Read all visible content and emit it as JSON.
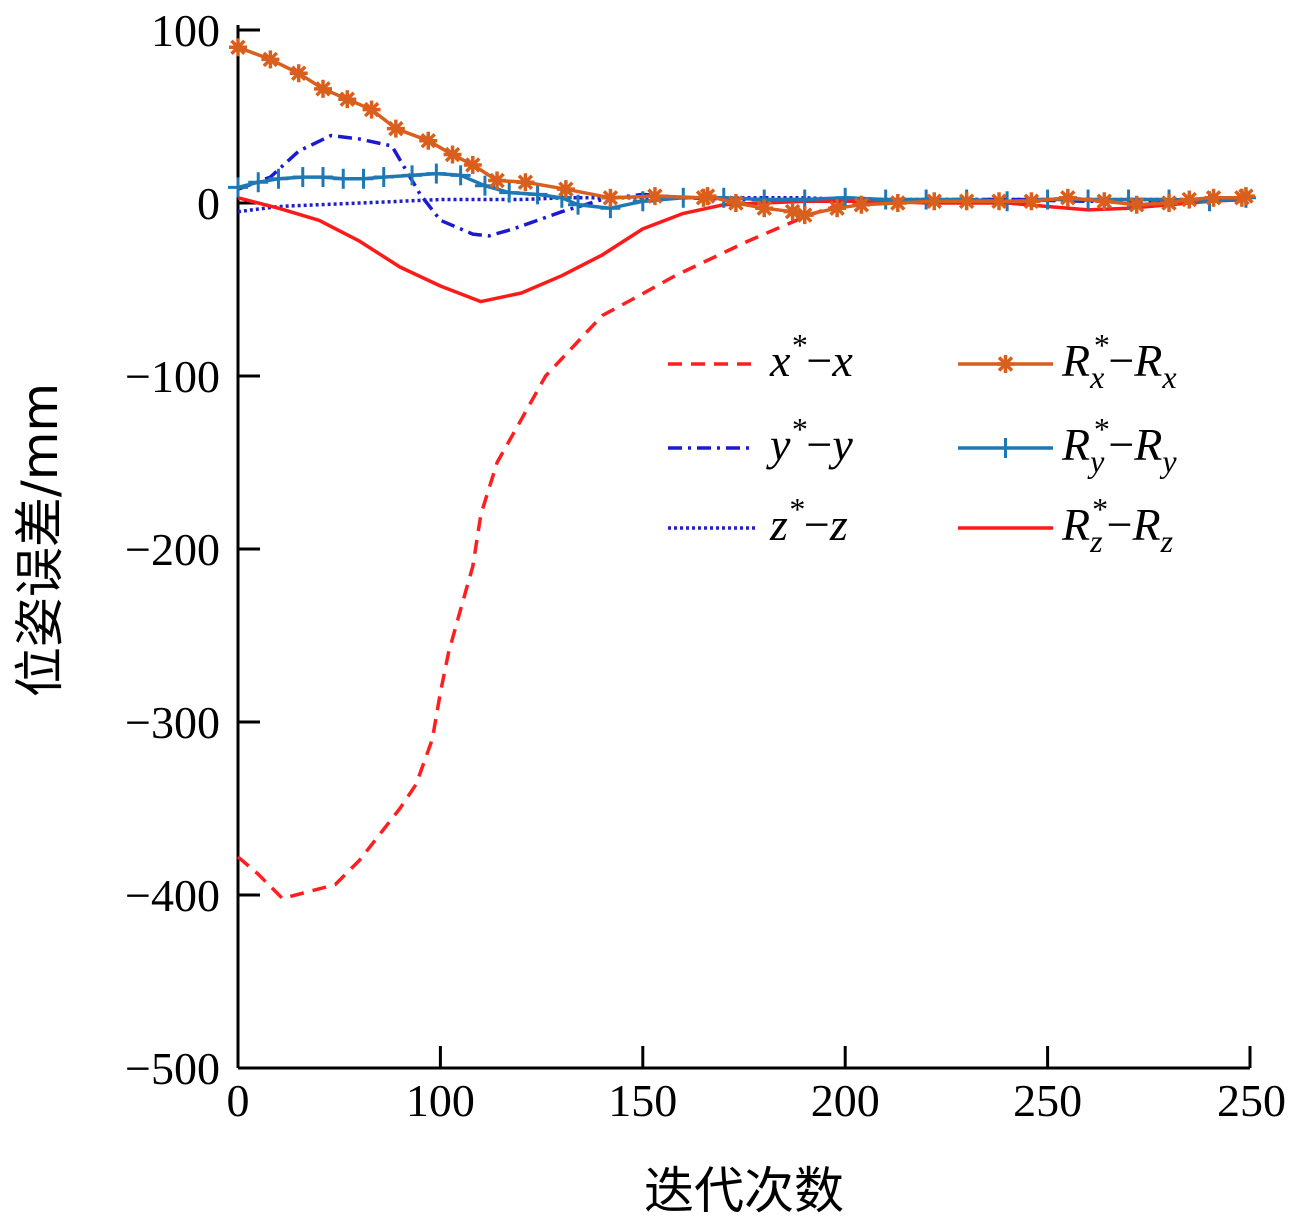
{
  "chart_data": {
    "type": "line",
    "xlabel": "迭代次数",
    "ylabel": "位姿误差/mm",
    "xlim": [
      0,
      250
    ],
    "ylim": [
      -500,
      100
    ],
    "x_ticks": [
      "0",
      "100",
      "150",
      "200",
      "250",
      "250"
    ],
    "y_ticks": [
      "100",
      "0",
      "−100",
      "−200",
      "−300",
      "−400",
      "−500"
    ],
    "grid": false,
    "legend_position": "center-right",
    "series": [
      {
        "name": "x*−x",
        "legend": {
          "base": "x",
          "sup": "*",
          "minus": "−",
          "base2": "x"
        },
        "color": "#ff1f1f",
        "style": "dashed",
        "marker": "none",
        "points": [
          [
            0,
            -378
          ],
          [
            5,
            -388
          ],
          [
            11,
            -402
          ],
          [
            24,
            -394
          ],
          [
            30,
            -380
          ],
          [
            40,
            -350
          ],
          [
            44,
            -336
          ],
          [
            48,
            -310
          ],
          [
            50,
            -283
          ],
          [
            52,
            -260
          ],
          [
            55,
            -235
          ],
          [
            58,
            -210
          ],
          [
            60,
            -180
          ],
          [
            64,
            -150
          ],
          [
            70,
            -125
          ],
          [
            76,
            -100
          ],
          [
            84,
            -80
          ],
          [
            90,
            -65
          ],
          [
            98,
            -55
          ],
          [
            108,
            -42
          ],
          [
            117,
            -32
          ],
          [
            126,
            -22
          ],
          [
            133,
            -15
          ],
          [
            140,
            -8
          ],
          [
            146,
            -3
          ],
          [
            150,
            0
          ],
          [
            160,
            1
          ],
          [
            175,
            1
          ],
          [
            190,
            2
          ],
          [
            205,
            2
          ],
          [
            220,
            1
          ],
          [
            235,
            1
          ],
          [
            249,
            2
          ]
        ]
      },
      {
        "name": "y*−y",
        "legend": {
          "base": "y",
          "sup": "*",
          "minus": "−",
          "base2": "y"
        },
        "color": "#1a1ad4",
        "style": "dashdot",
        "marker": "none",
        "points": [
          [
            0,
            8
          ],
          [
            8,
            15
          ],
          [
            15,
            30
          ],
          [
            23,
            39
          ],
          [
            30,
            37
          ],
          [
            38,
            33
          ],
          [
            45,
            5
          ],
          [
            50,
            -10
          ],
          [
            58,
            -18
          ],
          [
            62,
            -19
          ],
          [
            68,
            -15
          ],
          [
            74,
            -10
          ],
          [
            80,
            -5
          ],
          [
            90,
            2
          ],
          [
            100,
            5
          ],
          [
            110,
            3
          ],
          [
            125,
            2
          ],
          [
            140,
            2
          ],
          [
            155,
            1
          ],
          [
            170,
            2
          ],
          [
            190,
            2
          ],
          [
            210,
            1
          ],
          [
            230,
            1
          ],
          [
            249,
            2
          ]
        ]
      },
      {
        "name": "z*−z",
        "legend": {
          "base": "z",
          "sup": "*",
          "minus": "−",
          "base2": "z"
        },
        "color": "#2020c8",
        "style": "dotted",
        "marker": "none",
        "points": [
          [
            0,
            -5
          ],
          [
            10,
            -2
          ],
          [
            20,
            -1
          ],
          [
            30,
            0
          ],
          [
            40,
            1
          ],
          [
            50,
            2
          ],
          [
            60,
            2
          ],
          [
            70,
            2
          ],
          [
            80,
            3
          ],
          [
            90,
            3
          ],
          [
            100,
            3
          ],
          [
            110,
            3
          ],
          [
            120,
            3
          ],
          [
            130,
            3
          ],
          [
            140,
            3
          ],
          [
            150,
            2
          ],
          [
            160,
            2
          ],
          [
            170,
            2
          ],
          [
            180,
            2
          ],
          [
            190,
            2
          ],
          [
            200,
            2
          ],
          [
            210,
            2
          ],
          [
            220,
            2
          ],
          [
            230,
            2
          ],
          [
            240,
            2
          ],
          [
            249,
            2
          ]
        ]
      },
      {
        "name": "Rx*−Rx",
        "legend": {
          "base": "R",
          "sub": "x",
          "sup": "*",
          "minus": "−",
          "base2": "R",
          "sub2": "x"
        },
        "color": "#d95f1e",
        "style": "solid",
        "marker": "asterisk",
        "points": [
          [
            0,
            90
          ],
          [
            8,
            83
          ],
          [
            15,
            75
          ],
          [
            21,
            66
          ],
          [
            27,
            60
          ],
          [
            33,
            54
          ],
          [
            39,
            43
          ],
          [
            47,
            36
          ],
          [
            53,
            28
          ],
          [
            58,
            22
          ],
          [
            64,
            13
          ],
          [
            71,
            12
          ],
          [
            81,
            8
          ],
          [
            92,
            3
          ],
          [
            103,
            4
          ],
          [
            115,
            3
          ],
          [
            116,
            4
          ],
          [
            123,
            0
          ],
          [
            130,
            -3
          ],
          [
            137,
            -5
          ],
          [
            140,
            -7
          ],
          [
            148,
            -3
          ],
          [
            154,
            -1
          ],
          [
            163,
            0
          ],
          [
            172,
            1
          ],
          [
            180,
            1
          ],
          [
            188,
            1
          ],
          [
            196,
            1
          ],
          [
            205,
            3
          ],
          [
            214,
            1
          ],
          [
            222,
            -1
          ],
          [
            230,
            0
          ],
          [
            235,
            2
          ],
          [
            241,
            3
          ],
          [
            248,
            3
          ],
          [
            249,
            4
          ]
        ]
      },
      {
        "name": "Ry*−Ry",
        "legend": {
          "base": "R",
          "sub": "y",
          "sup": "*",
          "minus": "−",
          "base2": "R",
          "sub2": "y"
        },
        "color": "#1f78b4",
        "style": "solid",
        "marker": "plus",
        "points": [
          [
            0,
            9
          ],
          [
            5,
            12
          ],
          [
            10,
            14
          ],
          [
            16,
            15
          ],
          [
            21,
            15
          ],
          [
            26,
            14
          ],
          [
            31,
            14
          ],
          [
            36,
            15
          ],
          [
            43,
            16
          ],
          [
            49,
            17
          ],
          [
            55,
            16
          ],
          [
            61,
            10
          ],
          [
            67,
            6
          ],
          [
            74,
            5
          ],
          [
            80,
            3
          ],
          [
            84,
            -1
          ],
          [
            92,
            -3
          ],
          [
            100,
            1
          ],
          [
            110,
            3
          ],
          [
            120,
            3
          ],
          [
            130,
            2
          ],
          [
            140,
            2
          ],
          [
            150,
            3
          ],
          [
            160,
            2
          ],
          [
            170,
            2
          ],
          [
            180,
            2
          ],
          [
            190,
            1
          ],
          [
            200,
            2
          ],
          [
            210,
            2
          ],
          [
            220,
            2
          ],
          [
            230,
            2
          ],
          [
            240,
            1
          ],
          [
            249,
            3
          ]
        ]
      },
      {
        "name": "Rz*−Rz",
        "legend": {
          "base": "R",
          "sub": "z",
          "sup": "*",
          "minus": "−",
          "base2": "R",
          "sub2": "z"
        },
        "color": "#ff1a1a",
        "style": "solid",
        "marker": "none",
        "points": [
          [
            0,
            3
          ],
          [
            10,
            -3
          ],
          [
            20,
            -10
          ],
          [
            30,
            -22
          ],
          [
            40,
            -37
          ],
          [
            50,
            -48
          ],
          [
            60,
            -57
          ],
          [
            70,
            -52
          ],
          [
            80,
            -42
          ],
          [
            90,
            -30
          ],
          [
            100,
            -15
          ],
          [
            110,
            -6
          ],
          [
            120,
            -1
          ],
          [
            130,
            0
          ],
          [
            140,
            1
          ],
          [
            150,
            1
          ],
          [
            160,
            1
          ],
          [
            170,
            0
          ],
          [
            180,
            0
          ],
          [
            190,
            0
          ],
          [
            200,
            -2
          ],
          [
            210,
            -4
          ],
          [
            220,
            -3
          ],
          [
            230,
            -1
          ],
          [
            240,
            1
          ],
          [
            249,
            2
          ]
        ]
      }
    ]
  }
}
